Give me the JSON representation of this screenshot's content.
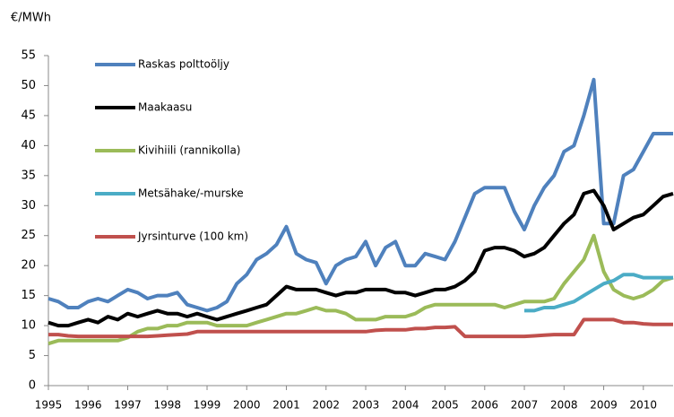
{
  "chart_data": {
    "type": "line",
    "y_label": "€/MWh",
    "x": [
      1995,
      1995.25,
      1995.5,
      1995.75,
      1996,
      1996.25,
      1996.5,
      1996.75,
      1997,
      1997.25,
      1997.5,
      1997.75,
      1998,
      1998.25,
      1998.5,
      1998.75,
      1999,
      1999.25,
      1999.5,
      1999.75,
      2000,
      2000.25,
      2000.5,
      2000.75,
      2001,
      2001.25,
      2001.5,
      2001.75,
      2002,
      2002.25,
      2002.5,
      2002.75,
      2003,
      2003.25,
      2003.5,
      2003.75,
      2004,
      2004.25,
      2004.5,
      2004.75,
      2005,
      2005.25,
      2005.5,
      2005.75,
      2006,
      2006.25,
      2006.5,
      2006.75,
      2007,
      2007.25,
      2007.5,
      2007.75,
      2008,
      2008.25,
      2008.5,
      2008.75,
      2009,
      2009.25,
      2009.5,
      2009.75,
      2010,
      2010.25,
      2010.5,
      2010.75
    ],
    "series": [
      {
        "name": "Raskas polttoöljy",
        "color": "#4f81bd",
        "values": [
          14.5,
          14,
          13,
          13,
          14,
          14.5,
          14,
          15,
          16,
          15.5,
          14.5,
          15,
          15,
          15.5,
          13.5,
          13,
          12.5,
          13,
          14,
          17,
          18.5,
          21,
          22,
          23.5,
          26.5,
          22,
          21,
          20.5,
          17,
          20,
          21,
          21.5,
          24,
          20,
          23,
          24,
          20,
          20,
          22,
          21.5,
          21,
          24,
          28,
          32,
          33,
          33,
          33,
          29,
          26,
          30,
          33,
          35,
          39,
          40,
          45,
          51,
          27,
          27,
          35,
          36,
          39,
          42,
          42,
          42
        ]
      },
      {
        "name": "Maakaasu",
        "color": "#000000",
        "values": [
          10.5,
          10,
          10,
          10.5,
          11,
          10.5,
          11.5,
          11,
          12,
          11.5,
          12,
          12.5,
          12,
          12,
          11.5,
          12,
          11.5,
          11,
          11.5,
          12,
          12.5,
          13,
          13.5,
          15,
          16.5,
          16,
          16,
          16,
          15.5,
          15,
          15.5,
          15.5,
          16,
          16,
          16,
          15.5,
          15.5,
          15,
          15.5,
          16,
          16,
          16.5,
          17.5,
          19,
          22.5,
          23,
          23,
          22.5,
          21.5,
          22,
          23,
          25,
          27,
          28.5,
          32,
          32.5,
          30,
          26,
          27,
          28,
          28.5,
          30,
          31.5,
          32
        ]
      },
      {
        "name": "Kivihiili (rannikolla)",
        "color": "#9bbb59",
        "values": [
          7,
          7.5,
          7.5,
          7.5,
          7.5,
          7.5,
          7.5,
          7.5,
          8,
          9,
          9.5,
          9.5,
          10,
          10,
          10.5,
          10.5,
          10.5,
          10,
          10,
          10,
          10,
          10.5,
          11,
          11.5,
          12,
          12,
          12.5,
          13,
          12.5,
          12.5,
          12,
          11,
          11,
          11,
          11.5,
          11.5,
          11.5,
          12,
          13,
          13.5,
          13.5,
          13.5,
          13.5,
          13.5,
          13.5,
          13.5,
          13,
          13.5,
          14,
          14,
          14,
          14.5,
          17,
          19,
          21,
          25,
          19,
          16,
          15,
          14.5,
          15,
          16,
          17.5,
          18
        ]
      },
      {
        "name": "Metsähake/-murske",
        "color": "#4bacc6",
        "values": [
          null,
          null,
          null,
          null,
          null,
          null,
          null,
          null,
          null,
          null,
          null,
          null,
          null,
          null,
          null,
          null,
          null,
          null,
          null,
          null,
          null,
          null,
          null,
          null,
          null,
          null,
          null,
          null,
          null,
          null,
          null,
          null,
          null,
          null,
          null,
          null,
          null,
          null,
          null,
          null,
          null,
          null,
          null,
          null,
          null,
          null,
          null,
          null,
          12.5,
          12.5,
          13,
          13,
          13.5,
          14,
          15,
          16,
          17,
          17.5,
          18.5,
          18.5,
          18,
          18,
          18,
          18
        ]
      },
      {
        "name": "Jyrsinturve (100 km)",
        "color": "#c0504d",
        "values": [
          8.5,
          8.5,
          8.3,
          8.2,
          8.2,
          8.2,
          8.2,
          8.2,
          8.2,
          8.2,
          8.2,
          8.3,
          8.4,
          8.5,
          8.6,
          9,
          9,
          9,
          9,
          9,
          9,
          9,
          9,
          9,
          9,
          9,
          9,
          9,
          9,
          9,
          9,
          9,
          9,
          9.2,
          9.3,
          9.3,
          9.3,
          9.5,
          9.5,
          9.7,
          9.7,
          9.8,
          8.2,
          8.2,
          8.2,
          8.2,
          8.2,
          8.2,
          8.2,
          8.3,
          8.4,
          8.5,
          8.5,
          8.5,
          11,
          11,
          11,
          11,
          10.5,
          10.5,
          10.3,
          10.2,
          10.2,
          10.2
        ]
      }
    ],
    "xlim": [
      1995,
      2010.75
    ],
    "xticks": [
      1995,
      1996,
      1997,
      1998,
      1999,
      2000,
      2001,
      2002,
      2003,
      2004,
      2005,
      2006,
      2007,
      2008,
      2009,
      2010
    ],
    "ylim": [
      0,
      55
    ],
    "yticks": [
      0,
      5,
      10,
      15,
      20,
      25,
      30,
      35,
      40,
      45,
      50,
      55
    ],
    "grid": false,
    "legend": "top-left"
  }
}
